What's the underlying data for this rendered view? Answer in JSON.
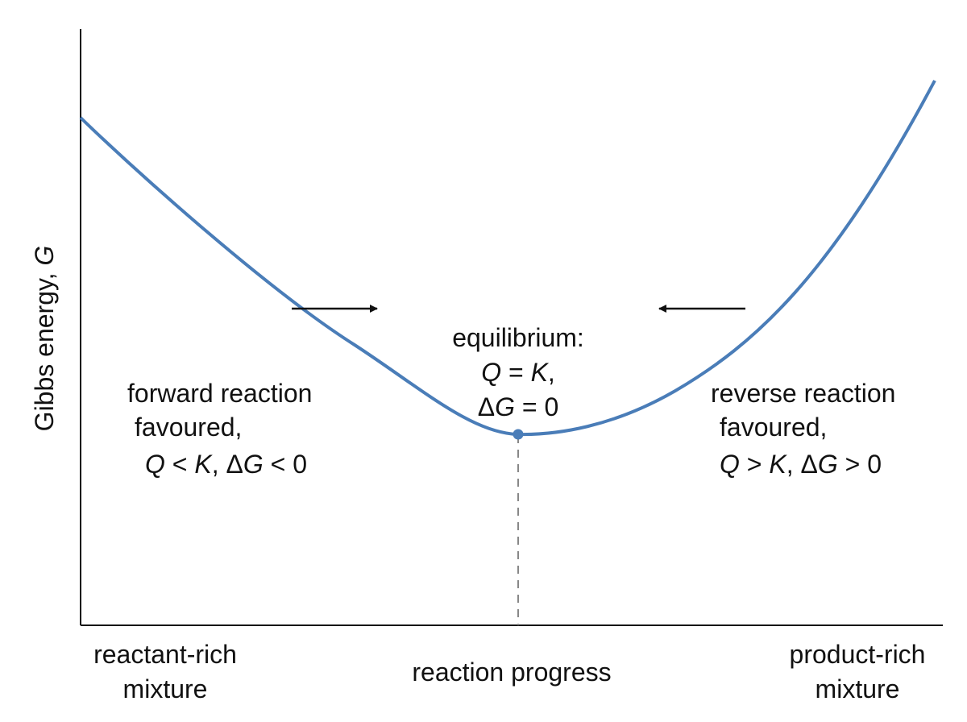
{
  "diagram": {
    "y_axis_label_prefix": "Gibbs energy, ",
    "y_axis_label_symbol": "G",
    "x_axis_label": "reaction progress",
    "x_left_label": [
      "reactant-rich",
      "mixture"
    ],
    "x_right_label": [
      "product-rich",
      "mixture"
    ],
    "equilibrium": {
      "line1": "equilibrium:",
      "line2_Q": "Q",
      "line2_eq": " = ",
      "line2_K": "K",
      "line2_comma": ",",
      "line3_delta": "Δ",
      "line3_G": "G",
      "line3_rest": " = 0"
    },
    "forward": {
      "line1": "forward reaction",
      "line2": "favoured,",
      "q": "Q",
      "lt": " < ",
      "k": "K",
      "comma": ", ",
      "delta": "Δ",
      "g": "G",
      "rest": " < 0"
    },
    "reverse": {
      "line1": "reverse reaction",
      "line2": "favoured,",
      "q": "Q",
      "gt": " > ",
      "k": "K",
      "comma": ", ",
      "delta": "Δ",
      "g": "G",
      "rest": " > 0"
    },
    "colors": {
      "curve": "#4a7db8",
      "axis": "#111111",
      "arrow": "#111111",
      "dashed": "#888888"
    }
  }
}
